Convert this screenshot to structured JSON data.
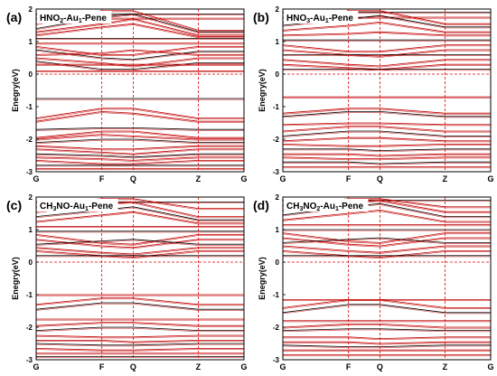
{
  "chart_data": [
    {
      "type": "line",
      "panel_label": "(a)",
      "title": "HNO",
      "title_sub": "2",
      "title_rest": "-Au",
      "title_sub2": "1",
      "title_end": "-Pene",
      "ylabel": "Enegry(eV)",
      "ylim": [
        -3,
        2
      ],
      "yticks": [
        "2",
        "1",
        "0",
        "-1",
        "-2",
        "-3"
      ],
      "kpoints": [
        "G",
        "F",
        "Q",
        "Z",
        "G"
      ],
      "kpoint_positions": [
        0,
        0.316,
        0.467,
        0.78,
        1.0
      ],
      "band_color": "#c00000",
      "band_color_alt": "#000000",
      "bands": [
        {
          "y": [
            1.85,
            1.85,
            1.85,
            1.85,
            1.85
          ]
        },
        {
          "y": [
            1.72,
            1.72,
            1.72,
            1.72,
            1.72
          ]
        },
        {
          "y": [
            1.55,
            1.95,
            1.95,
            1.35,
            1.35
          ]
        },
        {
          "y": [
            1.4,
            1.75,
            1.85,
            1.3,
            1.3
          ]
        },
        {
          "y": [
            1.3,
            1.55,
            1.7,
            1.2,
            1.2
          ]
        },
        {
          "y": [
            1.2,
            1.45,
            1.55,
            1.15,
            1.15
          ]
        },
        {
          "y": [
            1.1,
            1.1,
            1.1,
            1.1,
            1.1
          ]
        },
        {
          "y": [
            0.95,
            0.95,
            0.95,
            0.95,
            0.95
          ]
        },
        {
          "y": [
            0.85,
            0.6,
            0.6,
            0.85,
            0.85
          ]
        },
        {
          "y": [
            0.75,
            0.5,
            0.45,
            0.7,
            0.7
          ]
        },
        {
          "y": [
            0.6,
            0.65,
            0.75,
            0.6,
            0.6
          ]
        },
        {
          "y": [
            0.5,
            0.35,
            0.25,
            0.5,
            0.5
          ]
        },
        {
          "y": [
            0.4,
            0.15,
            0.15,
            0.35,
            0.35
          ]
        },
        {
          "y": [
            0.3,
            0.3,
            0.3,
            0.3,
            0.3
          ]
        },
        {
          "y": [
            0.1,
            0.1,
            0.1,
            0.1,
            0.1
          ]
        },
        {
          "y": [
            -0.75,
            -0.75,
            -0.75,
            -0.75,
            -0.75
          ]
        },
        {
          "y": [
            -1.35,
            -1.05,
            -1.05,
            -1.35,
            -1.35
          ]
        },
        {
          "y": [
            -1.45,
            -1.15,
            -1.2,
            -1.45,
            -1.45
          ]
        },
        {
          "y": [
            -1.7,
            -1.65,
            -1.65,
            -1.7,
            -1.7
          ]
        },
        {
          "y": [
            -1.95,
            -1.75,
            -1.75,
            -1.95,
            -1.95
          ]
        },
        {
          "y": [
            -2.0,
            -1.85,
            -1.9,
            -2.0,
            -2.0
          ]
        },
        {
          "y": [
            -2.1,
            -2.0,
            -2.0,
            -2.1,
            -2.1
          ]
        },
        {
          "y": [
            -2.2,
            -2.3,
            -2.3,
            -2.2,
            -2.2
          ]
        },
        {
          "y": [
            -2.3,
            -2.4,
            -2.45,
            -2.3,
            -2.3
          ]
        },
        {
          "y": [
            -2.45,
            -2.5,
            -2.55,
            -2.45,
            -2.45
          ]
        },
        {
          "y": [
            -2.55,
            -2.6,
            -2.65,
            -2.55,
            -2.55
          ]
        },
        {
          "y": [
            -2.65,
            -2.75,
            -2.75,
            -2.65,
            -2.65
          ]
        },
        {
          "y": [
            -2.8,
            -2.8,
            -2.8,
            -2.8,
            -2.8
          ]
        },
        {
          "y": [
            -2.9,
            -2.9,
            -2.9,
            -2.9,
            -2.9
          ]
        }
      ]
    },
    {
      "type": "line",
      "panel_label": "(b)",
      "title": "HNO",
      "title_sub": "3",
      "title_rest": "-Au",
      "title_sub2": "1",
      "title_end": "-Pene",
      "ylabel": "Enegry(eV)",
      "ylim": [
        -3,
        2
      ],
      "yticks": [
        "2",
        "1",
        "0",
        "-1",
        "-2",
        "-3"
      ],
      "kpoints": [
        "G",
        "F",
        "Q",
        "Z",
        "G"
      ],
      "kpoint_positions": [
        0,
        0.316,
        0.467,
        0.78,
        1.0
      ],
      "band_color": "#c00000",
      "band_color_alt": "#000000",
      "bands": [
        {
          "y": [
            1.9,
            1.9,
            1.9,
            1.9,
            1.9
          ]
        },
        {
          "y": [
            1.75,
            1.75,
            1.75,
            1.75,
            1.75
          ]
        },
        {
          "y": [
            1.6,
            1.95,
            1.95,
            1.55,
            1.55
          ]
        },
        {
          "y": [
            1.5,
            1.7,
            1.8,
            1.45,
            1.45
          ]
        },
        {
          "y": [
            1.35,
            1.5,
            1.6,
            1.3,
            1.3
          ]
        },
        {
          "y": [
            1.2,
            1.25,
            1.3,
            1.2,
            1.2
          ]
        },
        {
          "y": [
            1.05,
            1.05,
            1.05,
            1.05,
            1.05
          ]
        },
        {
          "y": [
            0.9,
            0.7,
            0.7,
            0.9,
            0.9
          ]
        },
        {
          "y": [
            0.75,
            0.6,
            0.55,
            0.75,
            0.75
          ]
        },
        {
          "y": [
            0.6,
            0.6,
            0.6,
            0.6,
            0.6
          ]
        },
        {
          "y": [
            0.45,
            0.3,
            0.25,
            0.45,
            0.45
          ]
        },
        {
          "y": [
            0.3,
            0.2,
            0.15,
            0.3,
            0.3
          ]
        },
        {
          "y": [
            0.15,
            0.15,
            0.15,
            0.15,
            0.15
          ]
        },
        {
          "y": [
            -0.7,
            -0.7,
            -0.7,
            -0.7,
            -0.7
          ]
        },
        {
          "y": [
            -1.2,
            -1.05,
            -1.05,
            -1.2,
            -1.2
          ]
        },
        {
          "y": [
            -1.3,
            -1.15,
            -1.15,
            -1.3,
            -1.3
          ]
        },
        {
          "y": [
            -1.55,
            -1.5,
            -1.5,
            -1.55,
            -1.55
          ]
        },
        {
          "y": [
            -1.75,
            -1.6,
            -1.6,
            -1.75,
            -1.75
          ]
        },
        {
          "y": [
            -1.9,
            -1.75,
            -1.75,
            -1.9,
            -1.9
          ]
        },
        {
          "y": [
            -2.05,
            -1.95,
            -1.95,
            -2.05,
            -2.05
          ]
        },
        {
          "y": [
            -2.15,
            -2.2,
            -2.2,
            -2.15,
            -2.15
          ]
        },
        {
          "y": [
            -2.3,
            -2.3,
            -2.35,
            -2.3,
            -2.3
          ]
        },
        {
          "y": [
            -2.45,
            -2.45,
            -2.5,
            -2.45,
            -2.45
          ]
        },
        {
          "y": [
            -2.55,
            -2.6,
            -2.6,
            -2.55,
            -2.55
          ]
        },
        {
          "y": [
            -2.7,
            -2.7,
            -2.75,
            -2.7,
            -2.7
          ]
        },
        {
          "y": [
            -2.85,
            -2.85,
            -2.85,
            -2.85,
            -2.85
          ]
        }
      ]
    },
    {
      "type": "line",
      "panel_label": "(c)",
      "title": "CH",
      "title_sub": "3",
      "title_rest": "NO-Au",
      "title_sub2": "1",
      "title_end": "-Pene",
      "ylabel": "Enegry(eV)",
      "ylim": [
        -3,
        2
      ],
      "yticks": [
        "2",
        "1",
        "0",
        "-1",
        "-2",
        "-3"
      ],
      "kpoints": [
        "G",
        "F",
        "Q",
        "Z",
        "G"
      ],
      "kpoint_positions": [
        0,
        0.316,
        0.467,
        0.78,
        1.0
      ],
      "band_color": "#c00000",
      "band_color_alt": "#000000",
      "bands": [
        {
          "y": [
            1.85,
            1.85,
            1.85,
            1.85,
            1.85
          ]
        },
        {
          "y": [
            1.7,
            1.95,
            1.95,
            1.65,
            1.65
          ]
        },
        {
          "y": [
            1.55,
            1.8,
            1.85,
            1.4,
            1.4
          ]
        },
        {
          "y": [
            1.4,
            1.6,
            1.7,
            1.3,
            1.3
          ]
        },
        {
          "y": [
            1.25,
            1.45,
            1.55,
            1.2,
            1.2
          ]
        },
        {
          "y": [
            1.1,
            1.1,
            1.1,
            1.1,
            1.1
          ]
        },
        {
          "y": [
            0.95,
            0.95,
            0.95,
            0.95,
            0.95
          ]
        },
        {
          "y": [
            0.85,
            0.6,
            0.55,
            0.85,
            0.85
          ]
        },
        {
          "y": [
            0.7,
            0.5,
            0.45,
            0.7,
            0.7
          ]
        },
        {
          "y": [
            0.55,
            0.65,
            0.7,
            0.55,
            0.55
          ]
        },
        {
          "y": [
            0.45,
            0.3,
            0.25,
            0.45,
            0.45
          ]
        },
        {
          "y": [
            0.35,
            0.2,
            0.15,
            0.35,
            0.35
          ]
        },
        {
          "y": [
            0.2,
            0.2,
            0.2,
            0.2,
            0.2
          ]
        },
        {
          "y": [
            -1.0,
            -1.0,
            -1.0,
            -1.0,
            -1.0
          ]
        },
        {
          "y": [
            -1.3,
            -1.1,
            -1.1,
            -1.3,
            -1.3
          ]
        },
        {
          "y": [
            -1.45,
            -1.25,
            -1.25,
            -1.45,
            -1.45
          ]
        },
        {
          "y": [
            -1.75,
            -1.75,
            -1.75,
            -1.75,
            -1.75
          ]
        },
        {
          "y": [
            -1.95,
            -1.85,
            -1.85,
            -1.95,
            -1.95
          ]
        },
        {
          "y": [
            -2.1,
            -2.0,
            -2.0,
            -2.1,
            -2.1
          ]
        },
        {
          "y": [
            -2.25,
            -2.3,
            -2.3,
            -2.25,
            -2.25
          ]
        },
        {
          "y": [
            -2.4,
            -2.4,
            -2.45,
            -2.4,
            -2.4
          ]
        },
        {
          "y": [
            -2.5,
            -2.55,
            -2.55,
            -2.5,
            -2.5
          ]
        },
        {
          "y": [
            -2.65,
            -2.7,
            -2.7,
            -2.65,
            -2.65
          ]
        },
        {
          "y": [
            -2.8,
            -2.8,
            -2.8,
            -2.8,
            -2.8
          ]
        },
        {
          "y": [
            -2.9,
            -2.9,
            -2.9,
            -2.9,
            -2.9
          ]
        }
      ]
    },
    {
      "type": "line",
      "panel_label": "(d)",
      "title": "CH",
      "title_sub": "3",
      "title_rest": "NO",
      "title_sub2": "2",
      "title_end": "-Au",
      "title_sub3": "1",
      "title_tail": "-Pene",
      "ylabel": "Enegry(eV)",
      "ylim": [
        -3,
        2
      ],
      "yticks": [
        "2",
        "1",
        "0",
        "-1",
        "-2",
        "-3"
      ],
      "kpoints": [
        "G",
        "F",
        "Q",
        "Z",
        "G"
      ],
      "kpoint_positions": [
        0,
        0.316,
        0.467,
        0.78,
        1.0
      ],
      "band_color": "#c00000",
      "band_color_alt": "#000000",
      "bands": [
        {
          "y": [
            1.9,
            1.9,
            1.9,
            1.9,
            1.9
          ]
        },
        {
          "y": [
            1.75,
            1.95,
            1.95,
            1.7,
            1.7
          ]
        },
        {
          "y": [
            1.6,
            1.85,
            1.9,
            1.55,
            1.55
          ]
        },
        {
          "y": [
            1.45,
            1.7,
            1.8,
            1.4,
            1.4
          ]
        },
        {
          "y": [
            1.3,
            1.5,
            1.6,
            1.25,
            1.25
          ]
        },
        {
          "y": [
            1.15,
            1.15,
            1.15,
            1.15,
            1.15
          ]
        },
        {
          "y": [
            1.0,
            1.0,
            1.0,
            1.0,
            1.0
          ]
        },
        {
          "y": [
            0.9,
            0.65,
            0.6,
            0.9,
            0.9
          ]
        },
        {
          "y": [
            0.75,
            0.55,
            0.5,
            0.75,
            0.75
          ]
        },
        {
          "y": [
            0.6,
            0.7,
            0.75,
            0.6,
            0.6
          ]
        },
        {
          "y": [
            0.5,
            0.35,
            0.3,
            0.5,
            0.5
          ]
        },
        {
          "y": [
            0.35,
            0.2,
            0.15,
            0.35,
            0.35
          ]
        },
        {
          "y": [
            0.2,
            0.2,
            0.2,
            0.2,
            0.2
          ]
        },
        {
          "y": [
            -1.15,
            -1.15,
            -1.15,
            -1.15,
            -1.15
          ]
        },
        {
          "y": [
            -1.4,
            -1.15,
            -1.15,
            -1.4,
            -1.4
          ]
        },
        {
          "y": [
            -1.55,
            -1.3,
            -1.3,
            -1.55,
            -1.55
          ]
        },
        {
          "y": [
            -1.8,
            -1.8,
            -1.8,
            -1.8,
            -1.8
          ]
        },
        {
          "y": [
            -2.0,
            -1.9,
            -1.9,
            -2.0,
            -2.0
          ]
        },
        {
          "y": [
            -2.1,
            -2.05,
            -2.05,
            -2.1,
            -2.1
          ]
        },
        {
          "y": [
            -2.3,
            -2.3,
            -2.35,
            -2.3,
            -2.3
          ]
        },
        {
          "y": [
            -2.45,
            -2.45,
            -2.5,
            -2.45,
            -2.45
          ]
        },
        {
          "y": [
            -2.55,
            -2.6,
            -2.6,
            -2.55,
            -2.55
          ]
        },
        {
          "y": [
            -2.7,
            -2.7,
            -2.7,
            -2.7,
            -2.7
          ]
        },
        {
          "y": [
            -2.85,
            -2.85,
            -2.85,
            -2.85,
            -2.85
          ]
        }
      ]
    }
  ]
}
